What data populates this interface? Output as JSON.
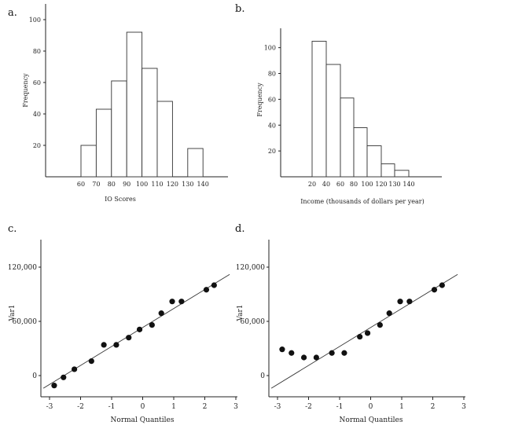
{
  "chart_data": [
    {
      "panel": "a.",
      "type": "bar",
      "xlabel": "IO Scores",
      "ylabel": "Frequency",
      "yticks": [
        20,
        40,
        60,
        80,
        100
      ],
      "xtick_labels": [
        "60",
        "70",
        "80",
        "90",
        "100",
        "110",
        "120",
        "130",
        "140"
      ],
      "bins": [
        [
          60,
          70
        ],
        [
          70,
          80
        ],
        [
          80,
          90
        ],
        [
          90,
          100
        ],
        [
          100,
          110
        ],
        [
          110,
          120
        ],
        [
          120,
          130
        ],
        [
          130,
          140
        ]
      ],
      "values": [
        20,
        43,
        61,
        92,
        69,
        48,
        0,
        18
      ],
      "ylim": [
        0,
        110
      ]
    },
    {
      "panel": "b.",
      "type": "bar",
      "xlabel": "Income (thousands of dollars per year)",
      "ylabel": "Frequency",
      "yticks": [
        20,
        40,
        60,
        80,
        100
      ],
      "xtick_labels": [
        "20",
        "40",
        "60",
        "80",
        "100",
        "120",
        "130",
        "140"
      ],
      "bins": [
        [
          20,
          40
        ],
        [
          40,
          60
        ],
        [
          60,
          80
        ],
        [
          80,
          100
        ],
        [
          100,
          120
        ],
        [
          120,
          130
        ],
        [
          130,
          140
        ]
      ],
      "values": [
        105,
        87,
        61,
        38,
        24,
        10,
        5
      ],
      "ylim": [
        0,
        115
      ]
    },
    {
      "panel": "c.",
      "type": "scatter",
      "xlabel": "Normal Quantiles",
      "ylabel": "Var1",
      "yticks": [
        "0",
        "60,000",
        "120,000"
      ],
      "xticks": [
        "-3",
        "-2",
        "-1",
        "0",
        "1",
        "2",
        "3"
      ],
      "xlim": [
        -3,
        3
      ],
      "ylim": [
        -25000,
        140000
      ],
      "x": [
        -2.85,
        -2.55,
        -2.2,
        -1.65,
        -1.25,
        -0.85,
        -0.45,
        -0.1,
        0.3,
        0.6,
        0.95,
        1.25,
        2.05,
        2.3
      ],
      "y": [
        -11000,
        -2000,
        7000,
        16000,
        34000,
        34000,
        42000,
        51000,
        56000,
        69000,
        82000,
        82000,
        95000,
        100000
      ],
      "fit_line": {
        "x": [
          -3.2,
          2.8
        ],
        "y": [
          -14000,
          112000
        ]
      }
    },
    {
      "panel": "d.",
      "type": "scatter",
      "xlabel": "Normal Quantiles",
      "ylabel": "Var1",
      "yticks": [
        "0",
        "60,000",
        "120,000"
      ],
      "xticks": [
        "-3",
        "-2",
        "-1",
        "0",
        "1",
        "2",
        "3"
      ],
      "xlim": [
        -3,
        3
      ],
      "ylim": [
        -25000,
        140000
      ],
      "x": [
        -2.85,
        -2.55,
        -2.15,
        -1.75,
        -1.25,
        -0.85,
        -0.35,
        -0.1,
        0.3,
        0.6,
        0.95,
        1.25,
        2.05,
        2.3
      ],
      "y": [
        29000,
        25000,
        20000,
        20000,
        25000,
        25000,
        43000,
        47000,
        56000,
        69000,
        82000,
        82000,
        95000,
        100000
      ],
      "fit_line": {
        "x": [
          -3.2,
          2.8
        ],
        "y": [
          -14000,
          112000
        ]
      }
    }
  ]
}
